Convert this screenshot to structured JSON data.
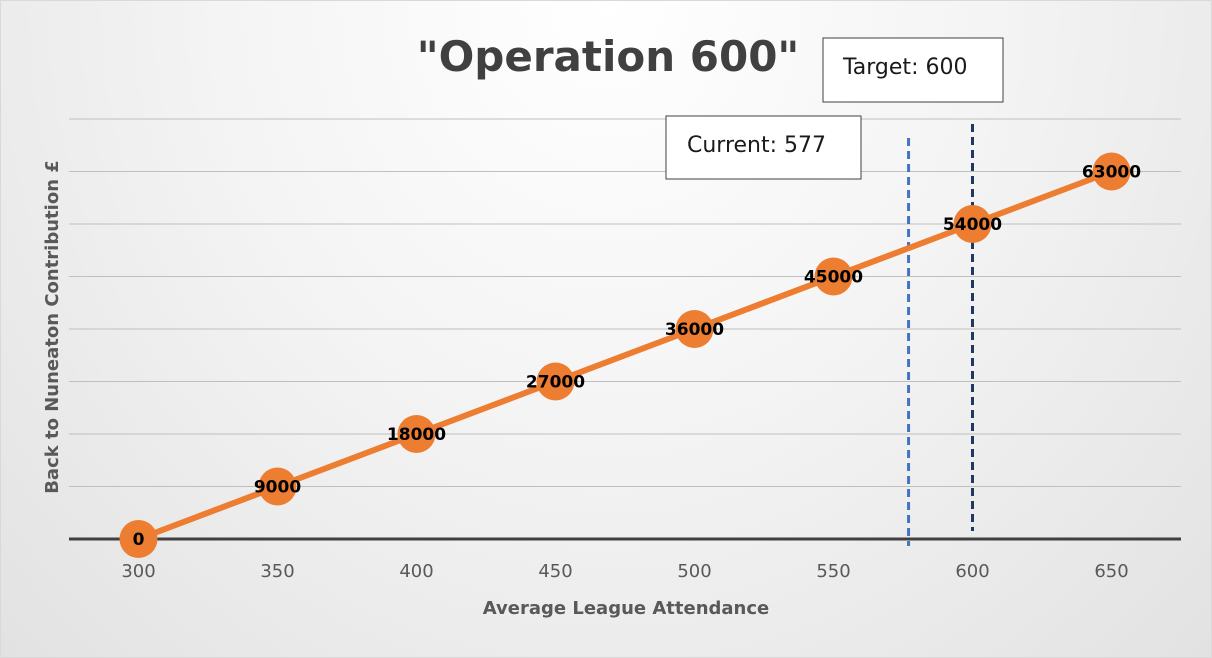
{
  "chart_data": {
    "type": "line",
    "title": "\"Operation 600\"",
    "xlabel": "Average League Attendance",
    "ylabel": "Back to Nuneaton Contribution £",
    "x": [
      300,
      350,
      400,
      450,
      500,
      550,
      600,
      650
    ],
    "series": [
      {
        "values": [
          0,
          9000,
          18000,
          27000,
          36000,
          45000,
          54000,
          63000
        ]
      }
    ],
    "xlim": [
      275,
      675
    ],
    "ylim": [
      0,
      72000
    ],
    "y_gridlines": [
      9000,
      18000,
      27000,
      36000,
      45000,
      54000,
      63000,
      72000
    ],
    "y_tick_labels_shown": false,
    "data_labels": true,
    "legend": "none",
    "colors": {
      "series": "#ED7D31",
      "current_line": "#4472C4",
      "target_line": "#1F3864",
      "grid": "#bfbfbf",
      "axis": "#404040"
    },
    "annotations": [
      {
        "id": "current",
        "text": "Current: 577",
        "x": 577
      },
      {
        "id": "target",
        "text": "Target: 600",
        "x": 600
      }
    ]
  }
}
